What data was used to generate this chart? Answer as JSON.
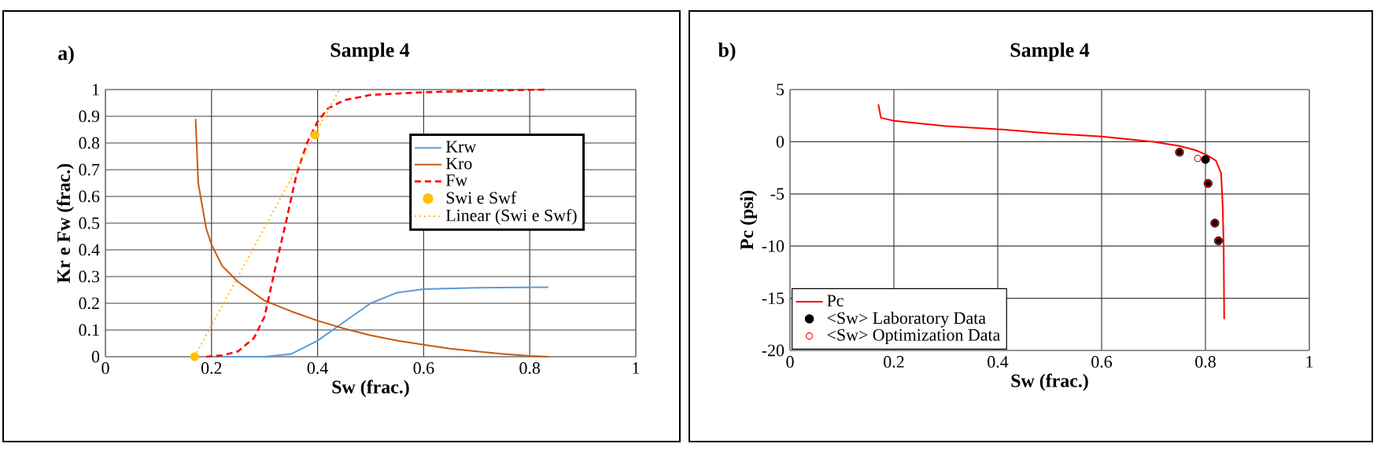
{
  "chart_data": [
    {
      "type": "line",
      "title": "Sample 4",
      "annotations": [
        "a)"
      ],
      "xlabel": "Sw (frac.)",
      "ylabel": "Kr e Fw (frac.)",
      "xlim": [
        0,
        1
      ],
      "ylim": [
        0,
        1
      ],
      "xticks": [
        0,
        0.2,
        0.4,
        0.6,
        0.8,
        1
      ],
      "yticks": [
        0,
        0.1,
        0.2,
        0.3,
        0.4,
        0.5,
        0.6,
        0.7,
        0.8,
        0.9,
        1
      ],
      "grid": true,
      "legend": "top right",
      "series": [
        {
          "name": "Krw",
          "color": "#5b9bd5",
          "line_style": "solid",
          "x": [
            0.19,
            0.3,
            0.35,
            0.4,
            0.45,
            0.5,
            0.55,
            0.6,
            0.7,
            0.835
          ],
          "values": [
            0,
            0,
            0.01,
            0.06,
            0.13,
            0.2,
            0.24,
            0.253,
            0.258,
            0.26
          ]
        },
        {
          "name": "Kro",
          "color": "#c55a11",
          "line_style": "solid",
          "x": [
            0.17,
            0.175,
            0.19,
            0.2,
            0.22,
            0.25,
            0.3,
            0.35,
            0.4,
            0.45,
            0.5,
            0.55,
            0.6,
            0.65,
            0.7,
            0.75,
            0.8,
            0.835
          ],
          "values": [
            0.89,
            0.65,
            0.48,
            0.42,
            0.34,
            0.28,
            0.21,
            0.17,
            0.135,
            0.105,
            0.08,
            0.06,
            0.045,
            0.03,
            0.02,
            0.01,
            0.003,
            0
          ]
        },
        {
          "name": "Fw",
          "color": "#ff0000",
          "line_style": "dashed",
          "x": [
            0.19,
            0.22,
            0.25,
            0.28,
            0.3,
            0.32,
            0.34,
            0.36,
            0.38,
            0.4,
            0.42,
            0.45,
            0.5,
            0.6,
            0.7,
            0.835
          ],
          "values": [
            0,
            0.005,
            0.02,
            0.07,
            0.15,
            0.33,
            0.5,
            0.68,
            0.8,
            0.88,
            0.93,
            0.96,
            0.98,
            0.99,
            0.995,
            1
          ]
        },
        {
          "name": "Swi e Swf",
          "type": "scatter",
          "marker": "circle",
          "color": "#ffc000",
          "x": [
            0.168,
            0.395
          ],
          "values": [
            0,
            0.83
          ]
        },
        {
          "name": "Linear (Swi e Swf)",
          "color": "#ffc000",
          "line_style": "dotted",
          "x": [
            0.168,
            0.441
          ],
          "values": [
            0,
            1
          ]
        }
      ]
    },
    {
      "type": "line",
      "title": "Sample 4",
      "annotations": [
        "b)"
      ],
      "xlabel": "Sw (frac.)",
      "ylabel": "Pc (psi)",
      "xlim": [
        0,
        1
      ],
      "ylim": [
        -20,
        5
      ],
      "xticks": [
        0,
        0.2,
        0.4,
        0.6,
        0.8,
        1
      ],
      "yticks": [
        -20,
        -15,
        -10,
        -5,
        0,
        5
      ],
      "grid": true,
      "legend": "bottom left",
      "series": [
        {
          "name": "Pc",
          "color": "#ff0000",
          "line_style": "solid",
          "x": [
            0.17,
            0.175,
            0.2,
            0.3,
            0.4,
            0.5,
            0.6,
            0.7,
            0.75,
            0.78,
            0.8,
            0.82,
            0.83,
            0.833,
            0.835,
            0.836
          ],
          "values": [
            3.6,
            2.3,
            2.0,
            1.5,
            1.2,
            0.8,
            0.5,
            0,
            -0.4,
            -0.8,
            -1.2,
            -1.8,
            -3,
            -6,
            -10,
            -17
          ]
        },
        {
          "name": "<Sw> Laboratory Data",
          "type": "scatter",
          "marker": "circle",
          "color": "#000000",
          "x": [
            0.75,
            0.8,
            0.805,
            0.818,
            0.825
          ],
          "values": [
            -1.0,
            -1.7,
            -4.0,
            -7.8,
            -9.5
          ]
        },
        {
          "name": "<Sw> Optimization Data",
          "type": "scatter",
          "marker": "circle",
          "color": "#ff0000",
          "x": [
            0.75,
            0.785,
            0.805,
            0.818,
            0.825
          ],
          "values": [
            -1.0,
            -1.6,
            -4.0,
            -7.8,
            -9.5
          ]
        }
      ]
    }
  ]
}
